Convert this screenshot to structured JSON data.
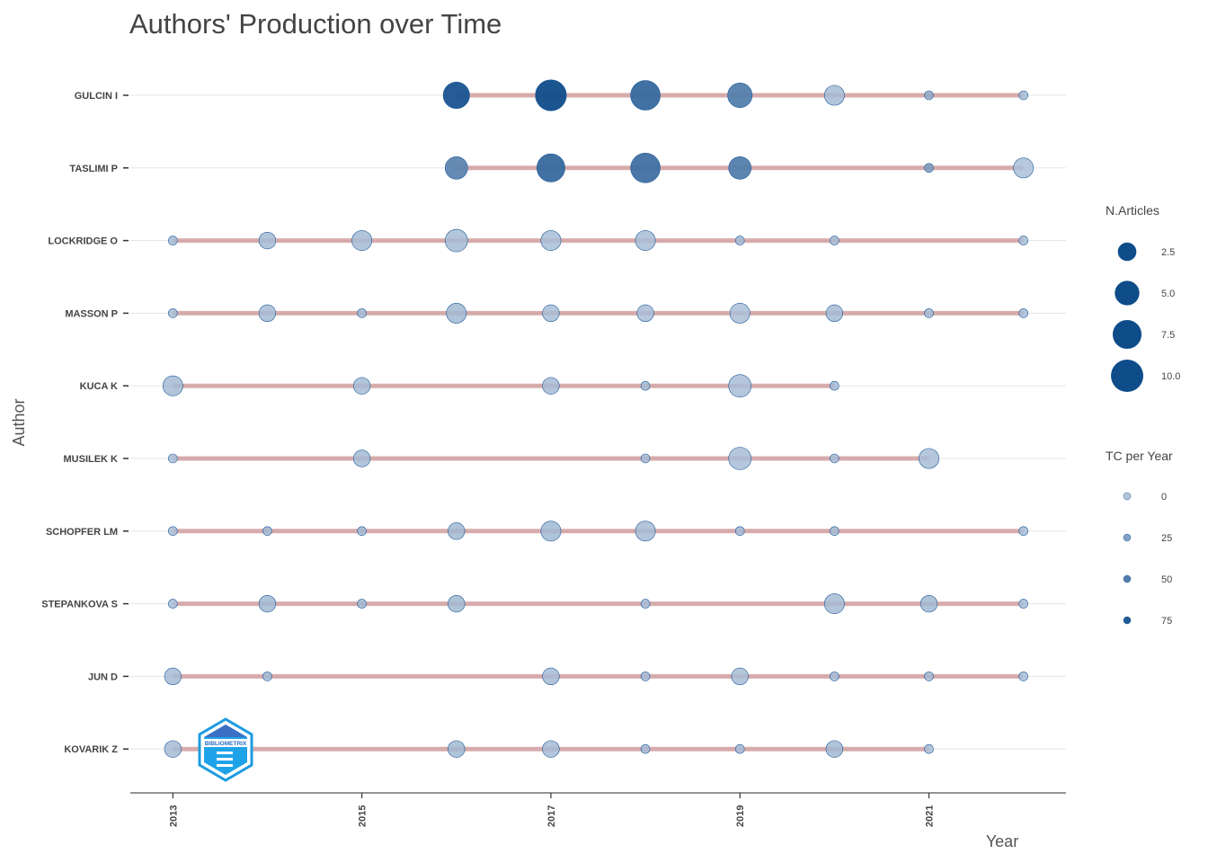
{
  "chart_data": {
    "type": "scatter",
    "title": "Authors' Production over Time",
    "xlabel": "Year",
    "ylabel": "Author",
    "x_ticks": [
      "2013",
      "2015",
      "2017",
      "2019",
      "2021"
    ],
    "xlim": [
      2012.55,
      2022.45
    ],
    "grid": "horizontal",
    "legend_position": "right",
    "colors": {
      "low": "#b4c6dc",
      "high": "#0f4c8a",
      "line": "#c98c8c",
      "grid": "#e5e5e5",
      "axis": "#555555",
      "text": "#444444"
    },
    "legend_size": {
      "title": "N.Articles",
      "values": [
        2.5,
        5.0,
        7.5,
        10.0
      ],
      "labels": [
        "2.5",
        "5.0",
        "7.5",
        "10.0"
      ]
    },
    "legend_color": {
      "title": "TC per Year",
      "values": [
        0,
        25,
        50,
        75
      ],
      "labels": [
        "0",
        "25",
        "50",
        "75"
      ]
    },
    "authors": [
      {
        "name": "GULCIN I",
        "points": [
          [
            2016,
            6,
            80
          ],
          [
            2017,
            9,
            85
          ],
          [
            2018,
            8,
            65
          ],
          [
            2019,
            5,
            50
          ],
          [
            2020,
            3,
            8
          ],
          [
            2021,
            1,
            20
          ],
          [
            2022,
            1,
            8
          ]
        ]
      },
      {
        "name": "TASLIMI P",
        "points": [
          [
            2016,
            4,
            45
          ],
          [
            2017,
            7,
            65
          ],
          [
            2018,
            8,
            60
          ],
          [
            2019,
            4,
            50
          ],
          [
            2021,
            1,
            30
          ],
          [
            2022,
            3,
            5
          ]
        ]
      },
      {
        "name": "LOCKRIDGE O",
        "points": [
          [
            2013,
            1,
            8
          ],
          [
            2014,
            2,
            8
          ],
          [
            2015,
            3,
            8
          ],
          [
            2016,
            4,
            8
          ],
          [
            2017,
            3,
            6
          ],
          [
            2018,
            3,
            6
          ],
          [
            2019,
            1,
            8
          ],
          [
            2020,
            1,
            8
          ],
          [
            2022,
            1,
            6
          ]
        ]
      },
      {
        "name": "MASSON P",
        "points": [
          [
            2013,
            1,
            6
          ],
          [
            2014,
            2,
            8
          ],
          [
            2015,
            1,
            8
          ],
          [
            2016,
            3,
            10
          ],
          [
            2017,
            2,
            6
          ],
          [
            2018,
            2,
            6
          ],
          [
            2019,
            3,
            4
          ],
          [
            2020,
            2,
            8
          ],
          [
            2021,
            1,
            8
          ],
          [
            2022,
            1,
            6
          ]
        ]
      },
      {
        "name": "KUCA K",
        "points": [
          [
            2013,
            3,
            8
          ],
          [
            2015,
            2,
            8
          ],
          [
            2017,
            2,
            8
          ],
          [
            2018,
            1,
            8
          ],
          [
            2019,
            4,
            6
          ],
          [
            2020,
            1,
            8
          ]
        ]
      },
      {
        "name": "MUSILEK K",
        "points": [
          [
            2013,
            1,
            6
          ],
          [
            2015,
            2,
            8
          ],
          [
            2018,
            1,
            8
          ],
          [
            2019,
            4,
            6
          ],
          [
            2020,
            1,
            8
          ],
          [
            2021,
            3,
            6
          ]
        ]
      },
      {
        "name": "SCHOPFER LM",
        "points": [
          [
            2013,
            1,
            6
          ],
          [
            2014,
            1,
            10
          ],
          [
            2015,
            1,
            10
          ],
          [
            2016,
            2,
            10
          ],
          [
            2017,
            3,
            10
          ],
          [
            2018,
            3,
            8
          ],
          [
            2019,
            1,
            8
          ],
          [
            2020,
            1,
            8
          ],
          [
            2022,
            1,
            6
          ]
        ]
      },
      {
        "name": "STEPANKOVA S",
        "points": [
          [
            2013,
            1,
            6
          ],
          [
            2014,
            2,
            10
          ],
          [
            2015,
            1,
            10
          ],
          [
            2016,
            2,
            10
          ],
          [
            2018,
            1,
            8
          ],
          [
            2020,
            3,
            8
          ],
          [
            2021,
            2,
            10
          ],
          [
            2022,
            1,
            6
          ]
        ]
      },
      {
        "name": "JUN D",
        "points": [
          [
            2013,
            2,
            8
          ],
          [
            2014,
            1,
            10
          ],
          [
            2017,
            2,
            8
          ],
          [
            2018,
            1,
            8
          ],
          [
            2019,
            2,
            6
          ],
          [
            2020,
            1,
            8
          ],
          [
            2021,
            1,
            8
          ],
          [
            2022,
            1,
            6
          ]
        ]
      },
      {
        "name": "KOVARIK Z",
        "points": [
          [
            2013,
            2,
            8
          ],
          [
            2016,
            2,
            10
          ],
          [
            2017,
            2,
            8
          ],
          [
            2018,
            1,
            8
          ],
          [
            2019,
            1,
            8
          ],
          [
            2020,
            2,
            10
          ],
          [
            2021,
            1,
            6
          ]
        ]
      }
    ],
    "logo_text": "BIBLIOMETRIX"
  }
}
